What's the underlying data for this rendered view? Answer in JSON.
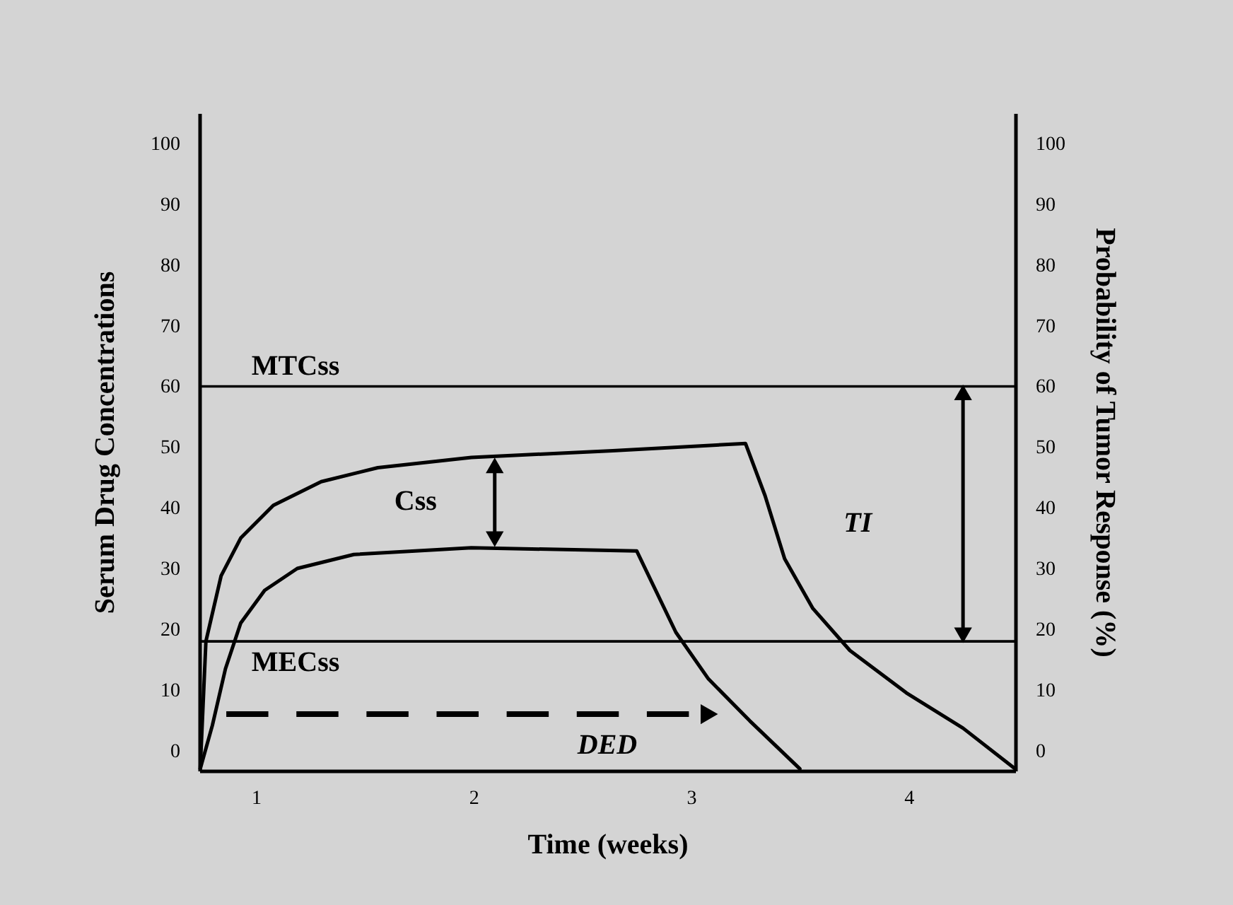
{
  "chart_data": {
    "type": "line",
    "xlabel": "Time (weeks)",
    "ylabel": "Serum Drug Concentrations",
    "y2label": "Probability of Tumor Response (%)",
    "xlim": [
      0.74,
      4.49
    ],
    "xticks": [
      1,
      2,
      3,
      4
    ],
    "ylim": [
      -3.3,
      105
    ],
    "yticks": [
      0,
      10,
      20,
      30,
      40,
      50,
      60,
      70,
      80,
      90,
      100
    ],
    "y2lim": [
      -3.3,
      105
    ],
    "y2ticks": [
      0,
      10,
      20,
      30,
      40,
      50,
      60,
      70,
      80,
      90,
      100
    ],
    "grid": false,
    "legend": false,
    "marker": "none",
    "line_style": "solid",
    "series": [
      {
        "color": "#000000",
        "x": [
          0.744,
          0.77,
          0.84,
          0.93,
          1.08,
          1.3,
          1.56,
          1.99,
          2.64,
          3.25,
          3.34,
          3.43,
          3.56,
          3.73,
          3.99,
          4.25,
          4.49
        ],
        "values": [
          -3,
          18,
          28.8,
          35,
          40.4,
          44.3,
          46.6,
          48.3,
          49.4,
          50.6,
          42,
          31.6,
          23.4,
          16.5,
          9.5,
          3.7,
          -3
        ]
      },
      {
        "color": "#000000",
        "x": [
          0.744,
          0.8,
          0.86,
          0.93,
          1.04,
          1.19,
          1.45,
          1.99,
          2.75,
          2.93,
          3.08,
          3.27,
          3.5
        ],
        "values": [
          -3,
          4.2,
          13.5,
          21,
          26.4,
          30,
          32.3,
          33.4,
          32.9,
          19.5,
          11.8,
          4.9,
          -3
        ]
      }
    ],
    "ref_lines": [
      {
        "axis": "y",
        "value": 60,
        "label": "MTCss",
        "color": "#000000"
      },
      {
        "axis": "y",
        "value": 18,
        "label": "MECss",
        "color": "#000000"
      }
    ],
    "annotations": [
      "Css",
      "TI",
      "DED"
    ]
  }
}
